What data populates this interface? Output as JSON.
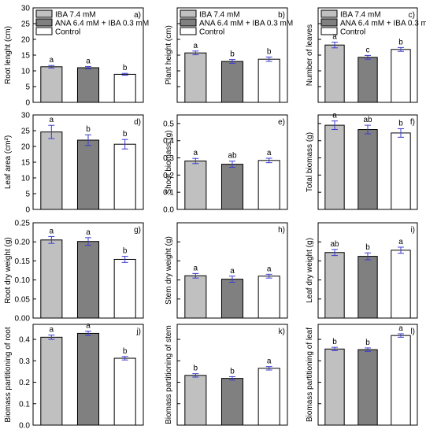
{
  "chart_data": [
    {
      "type": "bar",
      "panel_label": "a)",
      "ylabel": "Root lenght (cm)",
      "ylim": [
        0,
        30
      ],
      "yticks": [
        "0",
        "5",
        "10",
        "15",
        "20",
        "25",
        "30"
      ],
      "categories": [
        "IBA 7.4 mM",
        "ANA 6.4 mM + IBA 0.3 mM",
        "Control"
      ],
      "values": [
        11.3,
        11.0,
        8.9
      ],
      "errors": [
        0.4,
        0.4,
        0.3
      ],
      "letters": [
        "a",
        "a",
        "b"
      ],
      "legend": [
        "IBA 7.4 mM",
        "ANA 6.4 mM + IBA 0.3 mM",
        "Control"
      ]
    },
    {
      "type": "bar",
      "panel_label": "b)",
      "ylabel": "Plant height (cm)",
      "ylim": [
        0,
        30
      ],
      "categories": [
        "IBA 7.4 mM",
        "ANA 6.4 mM + IBA 0.3 mM",
        "Control"
      ],
      "values": [
        15.7,
        13.0,
        13.7
      ],
      "errors": [
        0.6,
        0.6,
        0.7
      ],
      "letters": [
        "a",
        "b",
        "b"
      ],
      "legend": [
        "IBA 7.4 mM",
        "ANA 6.4 mM + IBA 0.3 mM",
        "Control"
      ]
    },
    {
      "type": "bar",
      "panel_label": "c)",
      "ylabel": "Number of leaves",
      "ylim": [
        0,
        30
      ],
      "categories": [
        "IBA 7.4 mM",
        "ANA 6.4 mM + IBA 0.3 mM",
        "Control"
      ],
      "values": [
        18.2,
        14.3,
        16.8
      ],
      "errors": [
        0.9,
        0.6,
        0.6
      ],
      "letters": [
        "a",
        "c",
        "b"
      ],
      "legend": [
        "IBA 7.4 mM",
        "ANA 6.4 mM + IBA 0.3 mM",
        "Control"
      ]
    },
    {
      "type": "bar",
      "panel_label": "d)",
      "ylabel": "Leaf area (cm²)",
      "ylim": [
        0,
        30
      ],
      "yticks": [
        "0",
        "5",
        "10",
        "15",
        "20",
        "25",
        "30"
      ],
      "categories": [
        "IBA 7.4 mM",
        "ANA 6.4 mM + IBA 0.3 mM",
        "Control"
      ],
      "values": [
        24.6,
        22.0,
        20.7
      ],
      "errors": [
        2.1,
        1.7,
        1.5
      ],
      "letters": [
        "a",
        "b",
        "b"
      ]
    },
    {
      "type": "bar",
      "panel_label": "e)",
      "ylabel": "Shoot biomass (g)",
      "ylim": [
        0,
        0.55
      ],
      "yticks": [
        "0.0",
        "0.1",
        "0.2",
        "0.3",
        "0.4",
        "0.5"
      ],
      "categories": [
        "IBA 7.4 mM",
        "ANA 6.4 mM + IBA 0.3 mM",
        "Control"
      ],
      "values": [
        0.282,
        0.263,
        0.285
      ],
      "errors": [
        0.015,
        0.018,
        0.013
      ],
      "letters": [
        "a",
        "ab",
        "a"
      ]
    },
    {
      "type": "bar",
      "panel_label": "f)",
      "ylabel": "Total biomass (g)",
      "ylim": [
        0,
        0.55
      ],
      "categories": [
        "IBA 7.4 mM",
        "ANA 6.4 mM + IBA 0.3 mM",
        "Control"
      ],
      "values": [
        0.49,
        0.465,
        0.445
      ],
      "errors": [
        0.025,
        0.025,
        0.025
      ],
      "letters": [
        "a",
        "ab",
        "b"
      ]
    },
    {
      "type": "bar",
      "panel_label": "g)",
      "ylabel": "Root dry weight (g)",
      "ylim": [
        0,
        0.25
      ],
      "yticks": [
        "0.00",
        "0.05",
        "0.10",
        "0.15",
        "0.20",
        "0.25"
      ],
      "categories": [
        "IBA 7.4 mM",
        "ANA 6.4 mM + IBA 0.3 mM",
        "Control"
      ],
      "values": [
        0.205,
        0.201,
        0.154
      ],
      "errors": [
        0.009,
        0.01,
        0.008
      ],
      "letters": [
        "a",
        "a",
        "b"
      ]
    },
    {
      "type": "bar",
      "panel_label": "h)",
      "ylabel": "Stem dry weight (g)",
      "ylim": [
        0,
        0.25
      ],
      "categories": [
        "IBA 7.4 mM",
        "ANA 6.4 mM + IBA 0.3 mM",
        "Control"
      ],
      "values": [
        0.111,
        0.102,
        0.11
      ],
      "errors": [
        0.006,
        0.008,
        0.005
      ],
      "letters": [
        "a",
        "a",
        "a"
      ]
    },
    {
      "type": "bar",
      "panel_label": "i)",
      "ylabel": "Leaf dry weight (g)",
      "ylim": [
        0,
        0.25
      ],
      "categories": [
        "IBA 7.4 mM",
        "ANA 6.4 mM + IBA 0.3 mM",
        "Control"
      ],
      "values": [
        0.172,
        0.162,
        0.178
      ],
      "errors": [
        0.008,
        0.009,
        0.008
      ],
      "letters": [
        "ab",
        "b",
        "a"
      ]
    },
    {
      "type": "bar",
      "panel_label": "j)",
      "ylabel": "Biomass partitioning of root",
      "ylim": [
        0,
        0.47
      ],
      "yticks": [
        "0.0",
        "0.1",
        "0.2",
        "0.3",
        "0.4"
      ],
      "categories": [
        "IBA 7.4 mM",
        "ANA 6.4 mM + IBA 0.3 mM",
        "Control"
      ],
      "values": [
        0.41,
        0.428,
        0.312
      ],
      "errors": [
        0.01,
        0.01,
        0.008
      ],
      "letters": [
        "a",
        "a",
        "b"
      ]
    },
    {
      "type": "bar",
      "panel_label": "k)",
      "ylabel": "Biomass partitioning of stem",
      "ylim": [
        0,
        0.47
      ],
      "categories": [
        "IBA 7.4 mM",
        "ANA 6.4 mM + IBA 0.3 mM",
        "Control"
      ],
      "values": [
        0.232,
        0.218,
        0.265
      ],
      "errors": [
        0.008,
        0.008,
        0.008
      ],
      "letters": [
        "b",
        "b",
        "a"
      ]
    },
    {
      "type": "bar",
      "panel_label": "l)",
      "ylabel": "Biomass partitioning of leaf",
      "ylim": [
        0,
        0.47
      ],
      "categories": [
        "IBA 7.4 mM",
        "ANA 6.4 mM + IBA 0.3 mM",
        "Control"
      ],
      "values": [
        0.355,
        0.352,
        0.418
      ],
      "errors": [
        0.008,
        0.008,
        0.008
      ],
      "letters": [
        "b",
        "b",
        "a"
      ]
    }
  ],
  "colors": {
    "IBA 7.4 mM": "#c0c0c0",
    "ANA 6.4 mM + IBA 0.3 mM": "#808080",
    "Control": "#ffffff",
    "error_bar": "#3b3bd1",
    "axis": "#000000"
  }
}
